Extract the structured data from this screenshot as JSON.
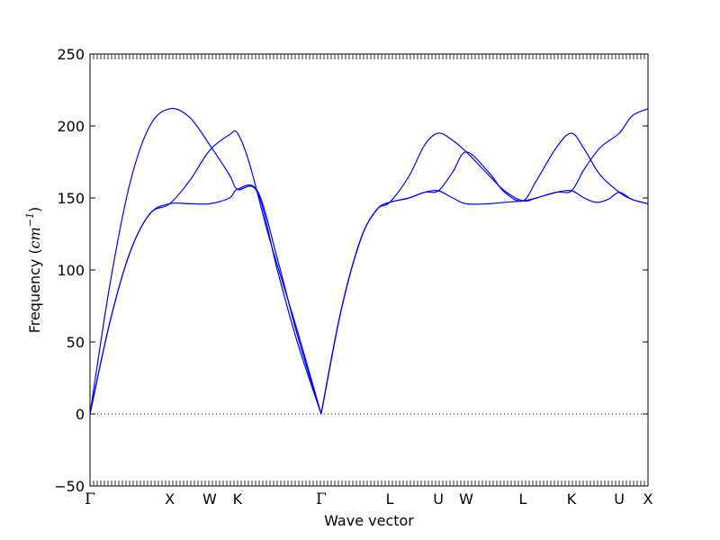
{
  "chart_data": {
    "type": "line",
    "title": "",
    "xlabel": "Wave vector",
    "ylabel_prefix": "Frequency (",
    "ylabel_unit": "cm",
    "ylabel_exp": "−1",
    "ylabel_suffix": ")",
    "ylim": [
      -50,
      250
    ],
    "yticks": [
      -50,
      0,
      50,
      100,
      150,
      200,
      250
    ],
    "ytick_labels": [
      "−50",
      "0",
      "50",
      "100",
      "150",
      "200",
      "250"
    ],
    "xlim": [
      0,
      7.0
    ],
    "high_symmetry_points": [
      {
        "label": "Γ",
        "x": 0.0
      },
      {
        "label": "X",
        "x": 1.0
      },
      {
        "label": "W",
        "x": 1.5
      },
      {
        "label": "K",
        "x": 1.85
      },
      {
        "label": "Γ",
        "x": 2.9
      },
      {
        "label": "L",
        "x": 3.76
      },
      {
        "label": "U",
        "x": 4.37
      },
      {
        "label": "W",
        "x": 4.72
      },
      {
        "label": "L",
        "x": 5.43
      },
      {
        "label": "K",
        "x": 6.04
      },
      {
        "label": "U",
        "x": 6.64
      },
      {
        "label": "X",
        "x": 7.0
      }
    ],
    "zero_line": true,
    "line_color": "#0000ff",
    "series": [
      {
        "x": [
          0,
          0.25,
          0.5,
          0.75,
          1.0,
          1.25,
          1.5,
          1.75,
          1.85,
          2.1,
          2.35,
          2.6,
          2.9
        ],
        "y": [
          0,
          90,
          160,
          200,
          212,
          206,
          187,
          166,
          156,
          154,
          100,
          50,
          0
        ]
      },
      {
        "x": [
          0,
          0.25,
          0.5,
          0.75,
          1.0,
          1.25,
          1.5,
          1.75,
          1.85,
          2.1,
          2.35,
          2.6,
          2.9
        ],
        "y": [
          0,
          64,
          112,
          139,
          146,
          146,
          146,
          150,
          156,
          155,
          108,
          55,
          0
        ]
      },
      {
        "x": [
          0,
          0.25,
          0.5,
          0.75,
          1.0,
          1.25,
          1.5,
          1.75,
          1.85,
          2.0,
          2.25,
          2.6,
          2.9
        ],
        "y": [
          0,
          64,
          112,
          139,
          146,
          162,
          183,
          194,
          195,
          174,
          122,
          58,
          0
        ]
      },
      {
        "x": [
          2.9,
          3.15,
          3.4,
          3.6,
          3.76,
          4.0,
          4.2,
          4.37,
          4.55,
          4.72,
          5.0,
          5.2,
          5.43,
          5.6,
          5.85,
          6.04,
          6.2,
          6.4,
          6.64,
          6.8,
          7.0
        ],
        "y": [
          0,
          72,
          122,
          142,
          147,
          150,
          154,
          155,
          168,
          182,
          168,
          154,
          148,
          162,
          185,
          195,
          184,
          166,
          154,
          149,
          146
        ]
      },
      {
        "x": [
          2.9,
          3.15,
          3.4,
          3.6,
          3.76,
          4.0,
          4.2,
          4.37,
          4.55,
          4.72,
          5.0,
          5.2,
          5.43,
          5.6,
          5.85,
          6.04,
          6.2,
          6.35,
          6.5,
          6.64,
          6.8,
          7.0
        ],
        "y": [
          0,
          72,
          122,
          142,
          147,
          165,
          187,
          195,
          190,
          182,
          166,
          155,
          148,
          150,
          154,
          155,
          150,
          147,
          149,
          154,
          149,
          146
        ]
      },
      {
        "x": [
          2.9,
          3.15,
          3.4,
          3.6,
          3.76,
          4.0,
          4.2,
          4.37,
          4.55,
          4.72,
          5.0,
          5.2,
          5.43,
          5.6,
          5.85,
          6.04,
          6.2,
          6.4,
          6.64,
          6.8,
          7.0
        ],
        "y": [
          0,
          72,
          122,
          142,
          147,
          150,
          154,
          155,
          150,
          146,
          146,
          147,
          148,
          150,
          154,
          155,
          170,
          185,
          195,
          207,
          212
        ]
      }
    ]
  }
}
